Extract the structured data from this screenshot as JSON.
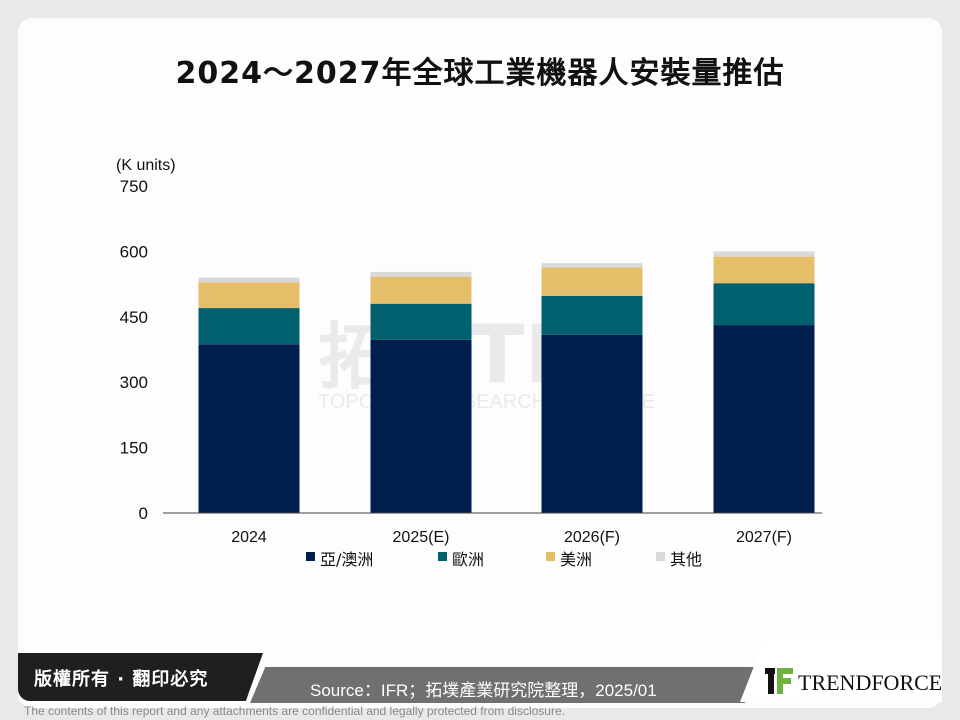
{
  "chart_data": {
    "type": "bar",
    "stacked": true,
    "title": "2024～2027年全球工業機器人安裝量推估",
    "ylabel": "(K units)",
    "xlabel": "",
    "ylim": [
      0,
      750
    ],
    "yticks": [
      0,
      150,
      300,
      450,
      600,
      750
    ],
    "categories": [
      "2024",
      "2025(E)",
      "2026(F)",
      "2027(F)"
    ],
    "series": [
      {
        "name": "亞/澳洲",
        "color": "#001f4e",
        "values": [
          387,
          397,
          409,
          431
        ]
      },
      {
        "name": "歐洲",
        "color": "#00606e",
        "values": [
          83,
          83,
          89,
          96
        ]
      },
      {
        "name": "美洲",
        "color": "#e5be69",
        "values": [
          59,
          62,
          65,
          61
        ]
      },
      {
        "name": "其他",
        "color": "#d9d9d9",
        "values": [
          11,
          11,
          10,
          12
        ]
      }
    ],
    "grid": false,
    "legend": "bottom"
  },
  "watermark": "拓墣 TRi TOPOLOGY RESEARCH INSTITUTE",
  "footer": {
    "copyright": "版權所有 · 翻印必究",
    "source": "Source：IFR；拓墣產業研究院整理，2025/01",
    "logo": "TRENDFORCE",
    "disclaimer": "The contents of this report and any attachments are confidential and legally protected from disclosure."
  }
}
